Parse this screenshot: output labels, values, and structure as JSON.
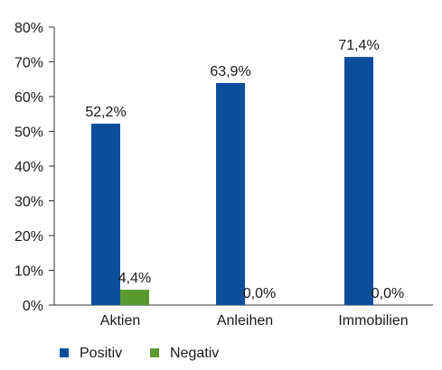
{
  "chart_data": {
    "type": "bar",
    "categories": [
      "Aktien",
      "Anleihen",
      "Immobilien"
    ],
    "series": [
      {
        "name": "Positiv",
        "values": [
          52.2,
          63.9,
          71.4
        ],
        "labels": [
          "52,2%",
          "63,9%",
          "71,4%"
        ]
      },
      {
        "name": "Negativ",
        "values": [
          4.4,
          0.0,
          0.0
        ],
        "labels": [
          "4,4%",
          "0,0%",
          "0,0%"
        ]
      }
    ],
    "title": "",
    "xlabel": "",
    "ylabel": "",
    "ylim": [
      0,
      80
    ],
    "yticks": [
      0,
      10,
      20,
      30,
      40,
      50,
      60,
      70,
      80
    ],
    "ytick_labels": [
      "0%",
      "10%",
      "20%",
      "30%",
      "40%",
      "50%",
      "60%",
      "70%",
      "80%"
    ],
    "grid": false,
    "legend_position": "bottom-left"
  },
  "colors": {
    "Positiv": "#0b4f9c",
    "Negativ": "#5b9a31",
    "axis": "#333333"
  }
}
